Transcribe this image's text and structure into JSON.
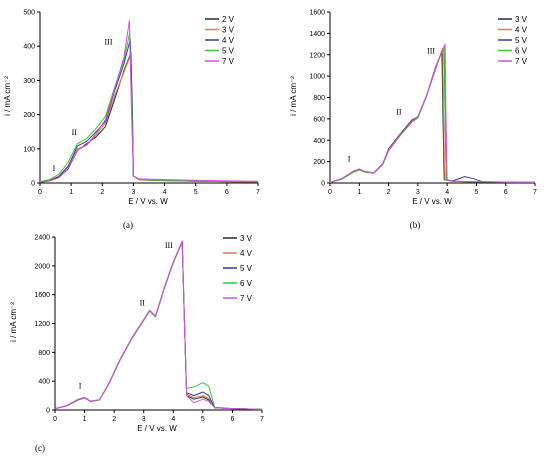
{
  "chart_data": [
    {
      "panel_label": "(a)",
      "type": "line",
      "xlabel": "E / V vs. W",
      "ylabel": "i / mA cm⁻²",
      "xlim": [
        0,
        7
      ],
      "ylim": [
        0,
        500
      ],
      "xticks": [
        "0",
        "1",
        "2",
        "3",
        "4",
        "5",
        "6",
        "7"
      ],
      "yticks": [
        "0",
        "100",
        "200",
        "300",
        "400",
        "500"
      ],
      "legend_position": "top-right",
      "annotations": [
        {
          "text": "I",
          "x": 0.45,
          "y": 35
        },
        {
          "text": "II",
          "x": 1.1,
          "y": 140
        },
        {
          "text": "III",
          "x": 2.2,
          "y": 405
        }
      ],
      "series": [
        {
          "name": "2 V",
          "color": "#2a2a2a",
          "x": [
            0,
            0.3,
            0.6,
            0.9,
            1.2,
            1.5,
            1.8,
            2.1,
            2.4,
            2.7,
            2.92,
            2.97,
            3.0,
            3.2,
            4,
            5,
            6,
            7
          ],
          "y": [
            2,
            6,
            16,
            40,
            95,
            115,
            135,
            165,
            245,
            330,
            380,
            200,
            20,
            9,
            7,
            5,
            4,
            3
          ]
        },
        {
          "name": "3 V",
          "color": "#e07b4a",
          "x": [
            0,
            0.3,
            0.6,
            0.9,
            1.2,
            1.5,
            1.8,
            2.1,
            2.4,
            2.7,
            2.9,
            2.96,
            3.0,
            3.2,
            4,
            5,
            6,
            7
          ],
          "y": [
            3,
            8,
            20,
            50,
            100,
            110,
            140,
            175,
            255,
            325,
            372,
            200,
            20,
            9,
            7,
            5,
            4,
            3
          ]
        },
        {
          "name": "4 V",
          "color": "#2c3ea8",
          "x": [
            0,
            0.3,
            0.6,
            0.9,
            1.2,
            1.5,
            1.8,
            2.1,
            2.4,
            2.7,
            2.9,
            2.96,
            3.0,
            3.2,
            4,
            5,
            6,
            7
          ],
          "y": [
            2,
            7,
            18,
            48,
            108,
            122,
            150,
            180,
            270,
            350,
            420,
            200,
            20,
            10,
            8,
            6,
            5,
            4
          ]
        },
        {
          "name": "5 V",
          "color": "#36c936",
          "x": [
            0,
            0.3,
            0.6,
            0.9,
            1.2,
            1.5,
            1.8,
            2.1,
            2.4,
            2.7,
            2.88,
            2.95,
            3.0,
            3.2,
            4,
            5,
            6,
            7
          ],
          "y": [
            4,
            10,
            25,
            60,
            115,
            130,
            160,
            195,
            280,
            360,
            440,
            200,
            20,
            10,
            8,
            6,
            5,
            4
          ]
        },
        {
          "name": "7 V",
          "color": "#d24fe0",
          "x": [
            0,
            0.3,
            0.6,
            0.9,
            1.2,
            1.5,
            1.8,
            2.1,
            2.4,
            2.7,
            2.87,
            2.94,
            3.0,
            3.2,
            4,
            5,
            6,
            7
          ],
          "y": [
            2,
            6,
            15,
            42,
            95,
            112,
            145,
            185,
            275,
            370,
            475,
            200,
            20,
            12,
            10,
            8,
            6,
            5
          ]
        }
      ]
    },
    {
      "panel_label": "(b)",
      "type": "line",
      "xlabel": "E / V vs. W",
      "ylabel": "i / mA cm⁻²",
      "xlim": [
        0,
        7
      ],
      "ylim": [
        0,
        1600
      ],
      "xticks": [
        "0",
        "1",
        "2",
        "3",
        "4",
        "5",
        "6",
        "7"
      ],
      "yticks": [
        "0",
        "200",
        "400",
        "600",
        "800",
        "1000",
        "1200",
        "1400",
        "1600"
      ],
      "legend_position": "top-right",
      "annotations": [
        {
          "text": "I",
          "x": 0.65,
          "y": 200
        },
        {
          "text": "II",
          "x": 2.35,
          "y": 640
        },
        {
          "text": "III",
          "x": 3.45,
          "y": 1210
        }
      ],
      "series": [
        {
          "name": "3 V",
          "color": "#2a2a2a",
          "x": [
            0,
            0.4,
            0.8,
            1.0,
            1.2,
            1.5,
            1.8,
            2.0,
            2.4,
            2.8,
            3.0,
            3.3,
            3.6,
            3.82,
            3.86,
            3.9,
            4.2,
            5,
            6,
            7
          ],
          "y": [
            5,
            40,
            110,
            130,
            105,
            95,
            180,
            320,
            460,
            590,
            620,
            820,
            1060,
            1240,
            600,
            30,
            15,
            10,
            8,
            6
          ]
        },
        {
          "name": "4 V",
          "color": "#e07b4a",
          "x": [
            0,
            0.4,
            0.8,
            1.0,
            1.2,
            1.5,
            1.8,
            2.0,
            2.4,
            2.8,
            3.0,
            3.3,
            3.6,
            3.85,
            3.88,
            3.92,
            4.2,
            5,
            6,
            7
          ],
          "y": [
            5,
            35,
            100,
            120,
            100,
            92,
            170,
            300,
            445,
            570,
            610,
            810,
            1060,
            1260,
            600,
            30,
            15,
            10,
            8,
            6
          ]
        },
        {
          "name": "5 V",
          "color": "#2c3ea8",
          "x": [
            0,
            0.4,
            0.8,
            1.0,
            1.2,
            1.5,
            1.8,
            2.0,
            2.4,
            2.8,
            3.0,
            3.3,
            3.6,
            3.9,
            3.93,
            3.97,
            4.2,
            4.6,
            4.9,
            5.2,
            6,
            7
          ],
          "y": [
            5,
            38,
            105,
            125,
            102,
            95,
            175,
            310,
            450,
            575,
            615,
            815,
            1080,
            1280,
            600,
            30,
            20,
            60,
            40,
            12,
            8,
            6
          ]
        },
        {
          "name": "6 V",
          "color": "#36c936",
          "x": [
            0,
            0.4,
            0.8,
            1.0,
            1.2,
            1.5,
            1.8,
            2.0,
            2.4,
            2.8,
            3.0,
            3.3,
            3.6,
            3.9,
            3.93,
            3.97,
            4.2,
            5,
            6,
            7
          ],
          "y": [
            5,
            38,
            105,
            125,
            102,
            95,
            175,
            310,
            450,
            575,
            615,
            815,
            1080,
            1270,
            600,
            30,
            15,
            10,
            8,
            6
          ]
        },
        {
          "name": "7 V",
          "color": "#d24fe0",
          "x": [
            0,
            0.4,
            0.8,
            1.0,
            1.2,
            1.5,
            1.8,
            2.0,
            2.4,
            2.8,
            3.0,
            3.3,
            3.6,
            3.93,
            3.96,
            4.0,
            4.2,
            5,
            6,
            7
          ],
          "y": [
            5,
            42,
            110,
            132,
            108,
            96,
            178,
            312,
            455,
            580,
            625,
            820,
            1085,
            1300,
            600,
            30,
            18,
            12,
            9,
            7
          ]
        }
      ]
    },
    {
      "panel_label": "(c)",
      "type": "line",
      "xlabel": "E / V vs. W",
      "ylabel": "i / mA cm⁻²",
      "xlim": [
        0,
        7
      ],
      "ylim": [
        0,
        2400
      ],
      "xticks": [
        "0",
        "1",
        "2",
        "3",
        "4",
        "5",
        "6",
        "7"
      ],
      "yticks": [
        "0",
        "400",
        "800",
        "1200",
        "1600",
        "2000",
        "2400"
      ],
      "legend_position": "top-right",
      "annotations": [
        {
          "text": "I",
          "x": 0.85,
          "y": 300
        },
        {
          "text": "II",
          "x": 2.95,
          "y": 1450
        },
        {
          "text": "III",
          "x": 3.85,
          "y": 2250
        }
      ],
      "series": [
        {
          "name": "3 V",
          "color": "#2a2a2a",
          "x": [
            0,
            0.4,
            0.8,
            1.0,
            1.2,
            1.5,
            1.8,
            2.2,
            2.6,
            3.0,
            3.2,
            3.4,
            3.7,
            4.0,
            4.3,
            4.38,
            4.45,
            4.7,
            5.0,
            5.2,
            5.4,
            6,
            7
          ],
          "y": [
            20,
            60,
            150,
            170,
            120,
            140,
            350,
            700,
            1000,
            1250,
            1380,
            1300,
            1700,
            2050,
            2340,
            1200,
            200,
            150,
            180,
            140,
            30,
            20,
            10
          ]
        },
        {
          "name": "4 V",
          "color": "#e07b4a",
          "x": [
            0,
            0.4,
            0.8,
            1.0,
            1.2,
            1.5,
            1.8,
            2.2,
            2.6,
            3.0,
            3.2,
            3.4,
            3.7,
            4.0,
            4.3,
            4.38,
            4.45,
            4.7,
            5.0,
            5.2,
            5.4,
            6,
            7
          ],
          "y": [
            20,
            55,
            140,
            165,
            118,
            138,
            340,
            690,
            990,
            1240,
            1370,
            1290,
            1690,
            2040,
            2330,
            1200,
            220,
            170,
            200,
            160,
            30,
            20,
            10
          ]
        },
        {
          "name": "5 V",
          "color": "#2c3ea8",
          "x": [
            0,
            0.4,
            0.8,
            1.0,
            1.2,
            1.5,
            1.8,
            2.2,
            2.6,
            3.0,
            3.2,
            3.4,
            3.7,
            4.0,
            4.3,
            4.38,
            4.45,
            4.7,
            5.0,
            5.2,
            5.4,
            6,
            7
          ],
          "y": [
            20,
            58,
            145,
            168,
            120,
            140,
            345,
            695,
            995,
            1245,
            1375,
            1295,
            1695,
            2045,
            2335,
            1200,
            240,
            200,
            250,
            200,
            30,
            20,
            10
          ]
        },
        {
          "name": "6 V",
          "color": "#36c936",
          "x": [
            0,
            0.4,
            0.8,
            1.0,
            1.2,
            1.5,
            1.8,
            2.2,
            2.6,
            3.0,
            3.2,
            3.4,
            3.7,
            4.0,
            4.3,
            4.38,
            4.45,
            4.7,
            5.0,
            5.2,
            5.4,
            6,
            7
          ],
          "y": [
            20,
            58,
            145,
            168,
            120,
            140,
            345,
            695,
            995,
            1245,
            1375,
            1295,
            1695,
            2045,
            2335,
            1200,
            300,
            320,
            380,
            330,
            40,
            20,
            10
          ]
        },
        {
          "name": "7 V",
          "color": "#d24fe0",
          "x": [
            0,
            0.4,
            0.8,
            1.0,
            1.2,
            1.5,
            1.8,
            2.2,
            2.6,
            3.0,
            3.2,
            3.4,
            3.7,
            4.0,
            4.3,
            4.38,
            4.45,
            4.7,
            5.0,
            5.2,
            5.4,
            6,
            7
          ],
          "y": [
            20,
            62,
            152,
            175,
            125,
            142,
            350,
            705,
            1005,
            1255,
            1385,
            1305,
            1705,
            2055,
            2345,
            1200,
            200,
            100,
            150,
            120,
            30,
            20,
            10
          ]
        }
      ]
    }
  ]
}
